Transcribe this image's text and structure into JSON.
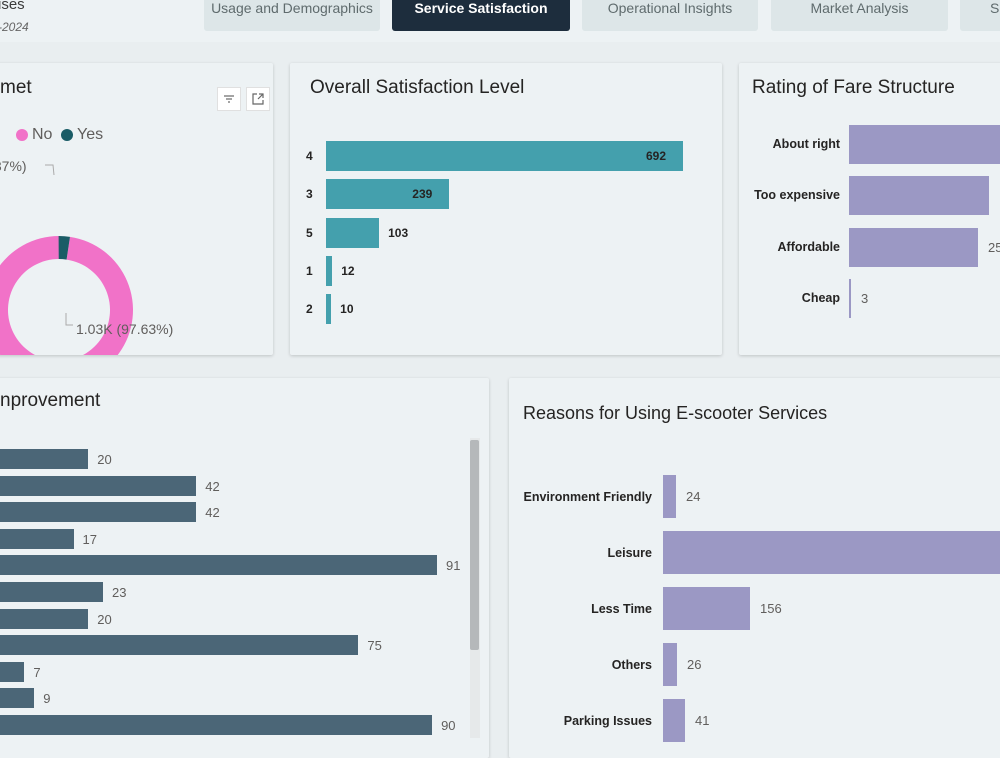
{
  "header": {
    "title": "ises",
    "subtitle": "-2024",
    "tabs": [
      {
        "label": "Usage and Demographics",
        "active": false
      },
      {
        "label": "Service Satisfaction",
        "active": true
      },
      {
        "label": "Operational Insights",
        "active": false
      },
      {
        "label": "Market Analysis",
        "active": false
      },
      {
        "label": "S",
        "active": false
      }
    ]
  },
  "colors": {
    "tab_active": "#1d2d3d",
    "teal": "#44a0ad",
    "lavender": "#9b98c4",
    "slate": "#4b6677",
    "pink": "#f172c8",
    "dark_teal": "#1a5c66"
  },
  "needs_met": {
    "title": "met",
    "legend": [
      {
        "label": "No",
        "color": "#f172c8"
      },
      {
        "label": "Yes",
        "color": "#1a5c66"
      }
    ],
    "label_yes": ".37%)",
    "label_no": "1.03K (97.63%)",
    "icons": [
      "filter-icon",
      "focus-mode-icon"
    ]
  },
  "chart_data": [
    {
      "type": "pie",
      "title": "met",
      "categories": [
        "No",
        "Yes"
      ],
      "values": [
        97.63,
        2.37
      ]
    },
    {
      "type": "bar",
      "title": "Overall Satisfaction Level",
      "categories": [
        "4",
        "3",
        "5",
        "1",
        "2"
      ],
      "values": [
        692,
        239,
        103,
        12,
        10
      ]
    },
    {
      "type": "bar",
      "title": "Rating of Fare Structure",
      "categories": [
        "About right",
        "Too expensive",
        "Affordable",
        "Cheap"
      ],
      "values": [
        null,
        null,
        null,
        3
      ],
      "visible_value_fragments": [
        "",
        "",
        "25",
        "3"
      ]
    },
    {
      "type": "bar",
      "title": "nprovement",
      "categories": [
        "",
        "",
        "",
        "",
        "",
        "",
        "",
        "",
        "",
        "",
        ""
      ],
      "values": [
        20,
        42,
        42,
        17,
        91,
        23,
        20,
        75,
        7,
        9,
        90
      ]
    },
    {
      "type": "bar",
      "title": "Reasons for Using E-scooter Services",
      "categories": [
        "Environment Friendly",
        "Leisure",
        "Less Time",
        "Others",
        "Parking Issues"
      ],
      "values": [
        24,
        null,
        156,
        26,
        41
      ]
    }
  ]
}
